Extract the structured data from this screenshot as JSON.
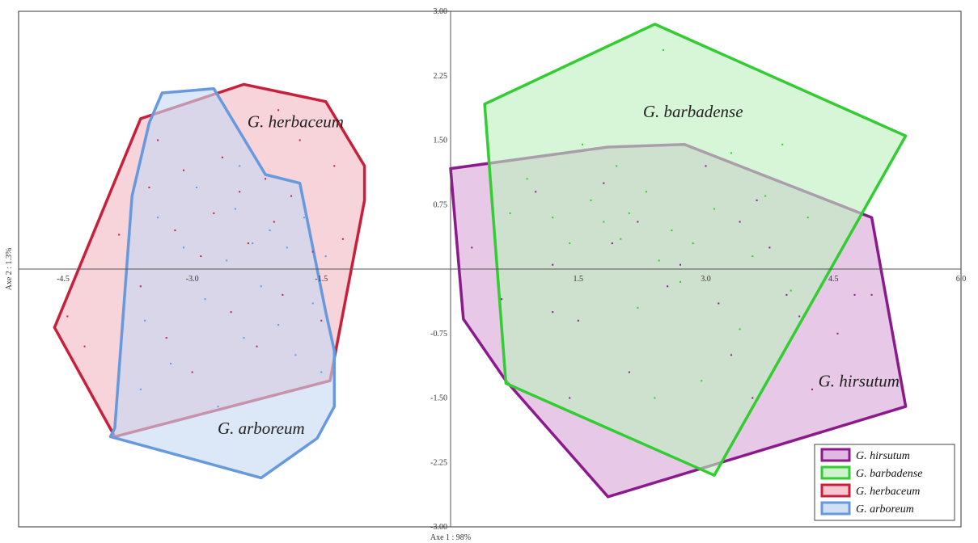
{
  "chart_data": {
    "type": "scatter",
    "xlabel": "Axe 1 : 98%",
    "ylabel": "Axe 2 : 1.3%",
    "xlim": [
      -5.25,
      6.0
    ],
    "ylim": [
      -3.0,
      3.0
    ],
    "x_ticks": [
      {
        "value": -4.5,
        "label": "-4.5"
      },
      {
        "value": -3.0,
        "label": "-3.0"
      },
      {
        "value": -1.5,
        "label": "-1.5"
      },
      {
        "value": 1.5,
        "label": "1.5"
      },
      {
        "value": 3.0,
        "label": "3.0"
      },
      {
        "value": 4.5,
        "label": "4.5"
      },
      {
        "value": 6.0,
        "label": "6.0"
      }
    ],
    "y_ticks": [
      {
        "value": 3.0,
        "label": "3.00"
      },
      {
        "value": 2.25,
        "label": "2.25"
      },
      {
        "value": 1.5,
        "label": "1.50"
      },
      {
        "value": 0.75,
        "label": "0.75"
      },
      {
        "value": -0.75,
        "label": "-0.75"
      },
      {
        "value": -1.5,
        "label": "-1.50"
      },
      {
        "value": -2.25,
        "label": "-2.25"
      },
      {
        "value": -3.0,
        "label": "-3.00"
      }
    ],
    "grid": false,
    "legend": "bottom-right",
    "series": [
      {
        "name": "G. hirsutum",
        "color": "#8b1a8b",
        "fill": "#d9a6d9",
        "hull": [
          [
            0.0,
            1.17
          ],
          [
            1.85,
            1.42
          ],
          [
            2.75,
            1.45
          ],
          [
            4.95,
            0.6
          ],
          [
            5.35,
            -1.6
          ],
          [
            1.85,
            -2.65
          ],
          [
            0.65,
            -1.3
          ],
          [
            0.15,
            -0.58
          ]
        ],
        "points": [
          [
            0.25,
            0.25
          ],
          [
            0.6,
            -0.35
          ],
          [
            1.0,
            0.9
          ],
          [
            1.2,
            0.05
          ],
          [
            1.2,
            -0.5
          ],
          [
            1.4,
            -1.5
          ],
          [
            1.5,
            -0.6
          ],
          [
            1.8,
            1.0
          ],
          [
            1.9,
            0.3
          ],
          [
            2.1,
            -1.2
          ],
          [
            2.2,
            0.55
          ],
          [
            2.55,
            -0.2
          ],
          [
            2.7,
            0.05
          ],
          [
            3.0,
            1.2
          ],
          [
            3.15,
            -0.4
          ],
          [
            3.3,
            -1.0
          ],
          [
            3.4,
            0.55
          ],
          [
            3.55,
            -1.5
          ],
          [
            3.6,
            0.8
          ],
          [
            3.75,
            0.25
          ],
          [
            3.95,
            -0.3
          ],
          [
            4.1,
            -0.55
          ],
          [
            4.25,
            -1.4
          ],
          [
            4.55,
            -0.75
          ],
          [
            4.75,
            -0.3
          ],
          [
            4.95,
            -0.3
          ]
        ]
      },
      {
        "name": "G. barbadense",
        "color": "#33cc33",
        "fill": "#bff0bf",
        "hull": [
          [
            0.4,
            1.92
          ],
          [
            2.4,
            2.85
          ],
          [
            5.35,
            1.55
          ],
          [
            3.1,
            -2.4
          ],
          [
            0.65,
            -1.33
          ]
        ],
        "points": [
          [
            0.7,
            0.65
          ],
          [
            0.9,
            1.05
          ],
          [
            1.2,
            0.6
          ],
          [
            1.4,
            0.3
          ],
          [
            1.55,
            1.45
          ],
          [
            1.65,
            0.8
          ],
          [
            1.8,
            0.55
          ],
          [
            1.95,
            1.2
          ],
          [
            2.0,
            0.35
          ],
          [
            2.1,
            0.65
          ],
          [
            2.2,
            -0.45
          ],
          [
            2.3,
            0.9
          ],
          [
            2.45,
            0.1
          ],
          [
            2.5,
            2.55
          ],
          [
            2.6,
            0.45
          ],
          [
            2.7,
            -0.15
          ],
          [
            2.85,
            0.3
          ],
          [
            2.95,
            -1.3
          ],
          [
            3.1,
            0.7
          ],
          [
            3.3,
            1.35
          ],
          [
            3.4,
            -0.7
          ],
          [
            3.55,
            0.15
          ],
          [
            3.7,
            0.85
          ],
          [
            3.9,
            1.45
          ],
          [
            4.0,
            -0.25
          ],
          [
            4.2,
            0.6
          ],
          [
            2.4,
            -1.5
          ]
        ]
      },
      {
        "name": "G. herbaceum",
        "color": "#c8203c",
        "fill": "#f2b8c3",
        "hull": [
          [
            -3.6,
            1.75
          ],
          [
            -2.4,
            2.15
          ],
          [
            -1.45,
            1.95
          ],
          [
            -1.0,
            1.2
          ],
          [
            -1.0,
            0.8
          ],
          [
            -1.4,
            -1.3
          ],
          [
            -3.9,
            -1.95
          ],
          [
            -4.6,
            -0.68
          ]
        ],
        "points": [
          [
            -4.45,
            -0.55
          ],
          [
            -4.25,
            -0.9
          ],
          [
            -3.85,
            0.4
          ],
          [
            -3.6,
            -0.2
          ],
          [
            -3.5,
            0.95
          ],
          [
            -3.4,
            1.5
          ],
          [
            -3.3,
            -0.8
          ],
          [
            -3.2,
            0.45
          ],
          [
            -3.1,
            1.15
          ],
          [
            -3.0,
            -1.2
          ],
          [
            -2.9,
            0.15
          ],
          [
            -2.75,
            0.65
          ],
          [
            -2.65,
            1.3
          ],
          [
            -2.55,
            -0.5
          ],
          [
            -2.45,
            0.9
          ],
          [
            -2.35,
            0.3
          ],
          [
            -2.25,
            -0.9
          ],
          [
            -2.15,
            1.05
          ],
          [
            -2.05,
            0.55
          ],
          [
            -1.95,
            -0.3
          ],
          [
            -1.85,
            0.85
          ],
          [
            -1.75,
            1.5
          ],
          [
            -1.6,
            0.2
          ],
          [
            -1.5,
            -0.6
          ],
          [
            -1.35,
            1.2
          ],
          [
            -1.25,
            0.35
          ],
          [
            -2.0,
            1.85
          ]
        ]
      },
      {
        "name": "G. arboreum",
        "color": "#6699dd",
        "fill": "#c6d8f2",
        "hull": [
          [
            -3.35,
            2.05
          ],
          [
            -2.75,
            2.1
          ],
          [
            -2.15,
            1.1
          ],
          [
            -1.75,
            1.0
          ],
          [
            -1.45,
            -0.5
          ],
          [
            -1.35,
            -0.95
          ],
          [
            -1.35,
            -1.6
          ],
          [
            -1.55,
            -1.97
          ],
          [
            -2.2,
            -2.43
          ],
          [
            -3.95,
            -1.95
          ],
          [
            -3.9,
            -1.85
          ],
          [
            -3.7,
            0.85
          ],
          [
            -3.5,
            1.7
          ]
        ],
        "points": [
          [
            -3.55,
            -0.6
          ],
          [
            -3.4,
            0.6
          ],
          [
            -3.25,
            -1.1
          ],
          [
            -3.1,
            0.25
          ],
          [
            -2.95,
            0.95
          ],
          [
            -2.85,
            -0.35
          ],
          [
            -2.7,
            -1.6
          ],
          [
            -2.6,
            0.1
          ],
          [
            -2.5,
            0.7
          ],
          [
            -2.4,
            -0.8
          ],
          [
            -2.3,
            0.3
          ],
          [
            -2.2,
            -0.2
          ],
          [
            -2.1,
            0.45
          ],
          [
            -2.0,
            -0.65
          ],
          [
            -1.9,
            0.25
          ],
          [
            -1.8,
            -1.0
          ],
          [
            -1.7,
            0.6
          ],
          [
            -1.6,
            -0.4
          ],
          [
            -1.5,
            -1.2
          ],
          [
            -1.45,
            0.15
          ],
          [
            -3.6,
            -1.4
          ],
          [
            -2.45,
            1.2
          ]
        ]
      }
    ],
    "annotations": [
      {
        "text": "G. herbaceum",
        "x": -1.8,
        "y": 1.65
      },
      {
        "text": "G. barbadense",
        "x": 2.85,
        "y": 1.77
      },
      {
        "text": "G. hirsutum",
        "x": 4.8,
        "y": -1.37
      },
      {
        "text": "G. arboreum",
        "x": -2.2,
        "y": -1.92
      }
    ]
  }
}
